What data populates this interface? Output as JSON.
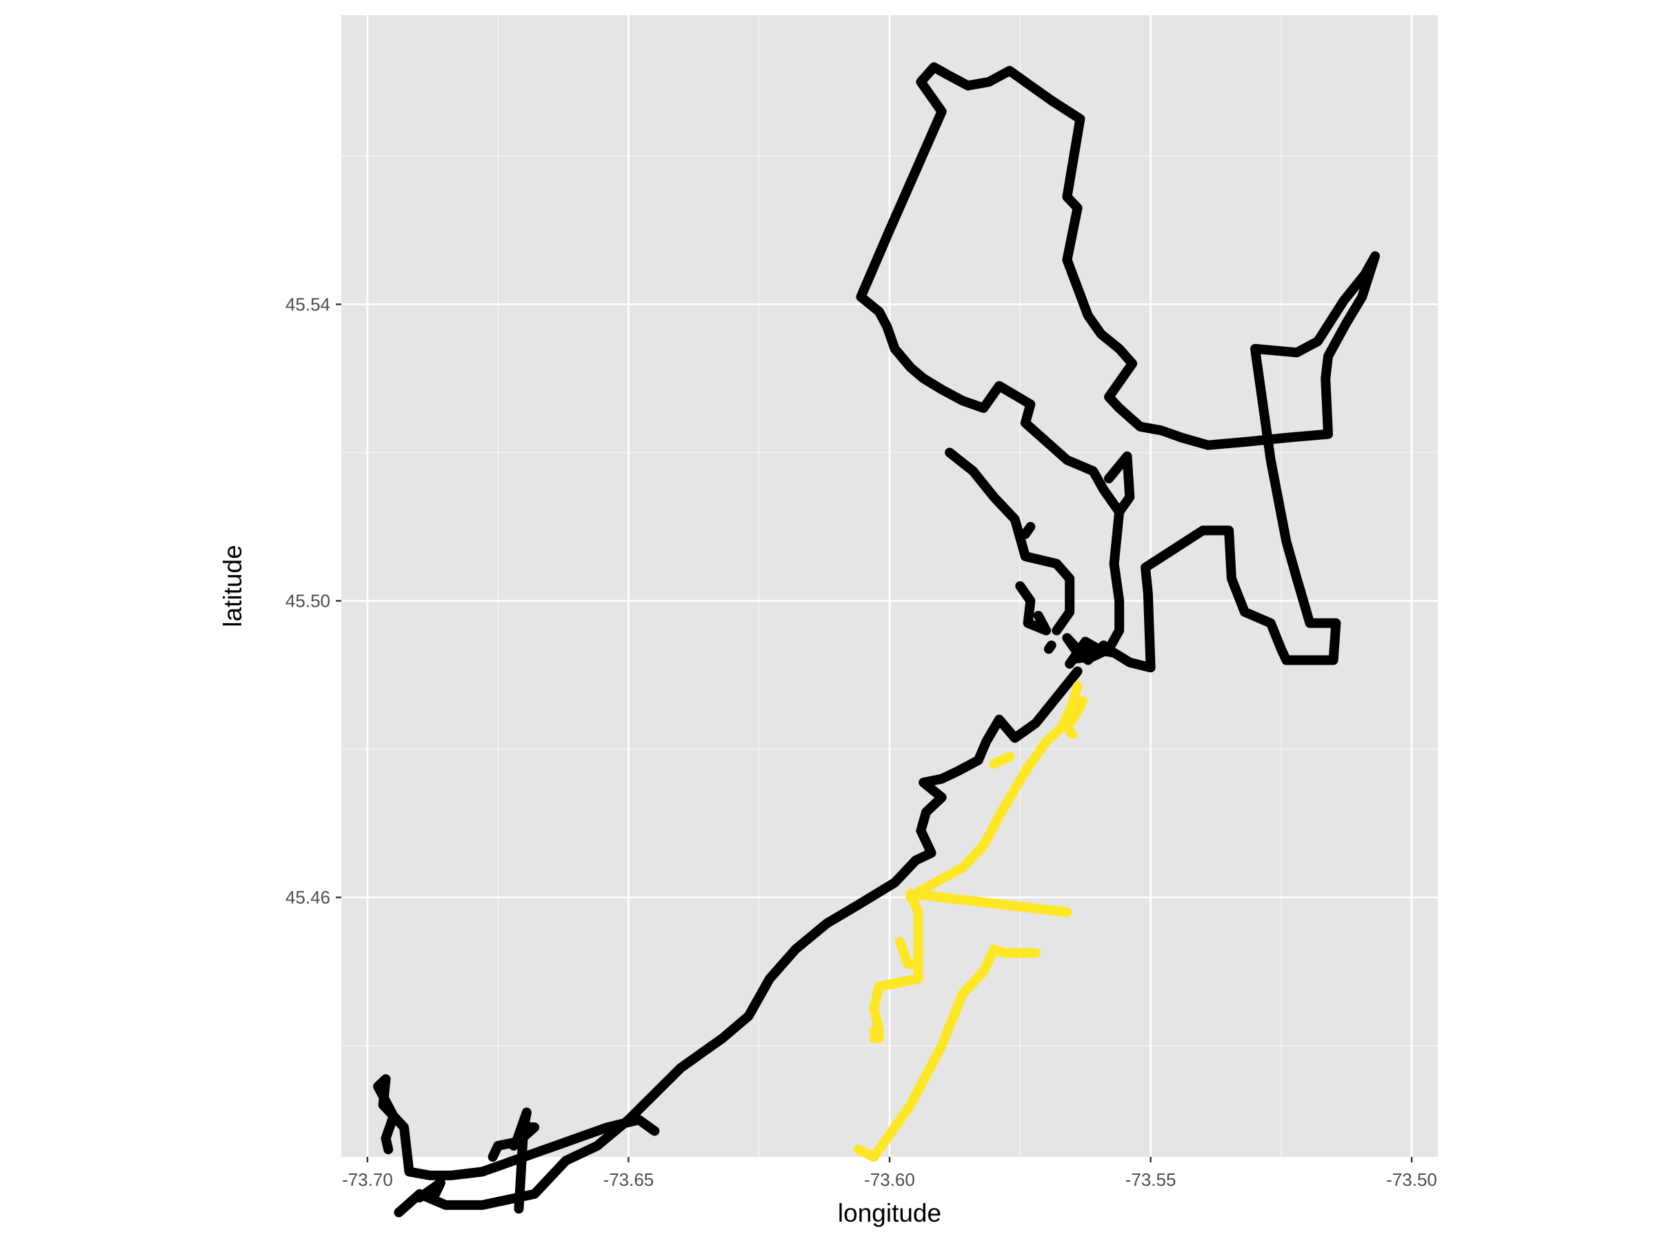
{
  "chart_data": {
    "type": "line",
    "title": "",
    "xlabel": "longitude",
    "ylabel": "latitude",
    "xlim": [
      -73.705,
      -73.495
    ],
    "ylim": [
      45.425,
      45.579
    ],
    "x_ticks": [
      -73.7,
      -73.65,
      -73.6,
      -73.55,
      -73.5
    ],
    "x_tick_labels": [
      "-73.70",
      "-73.65",
      "-73.60",
      "-73.55",
      "-73.50"
    ],
    "y_ticks": [
      45.46,
      45.5,
      45.54
    ],
    "y_tick_labels": [
      "45.46",
      "45.50",
      "45.54"
    ],
    "grid": true,
    "legend": "none",
    "colors": {
      "panel": "#e5e5e5",
      "grid": "#ffffff",
      "series_black": "#000000",
      "series_yellow": "#fde725"
    },
    "series": [
      {
        "color": "#000000",
        "segments": [
          [
            [
              -73.5645,
              45.4922
            ],
            [
              -73.561,
              45.4935
            ],
            [
              -73.557,
              45.493
            ],
            [
              -73.554,
              45.4917
            ],
            [
              -73.55,
              45.491
            ],
            [
              -73.5505,
              45.501
            ],
            [
              -73.551,
              45.5045
            ],
            [
              -73.54,
              45.5095
            ],
            [
              -73.535,
              45.5095
            ],
            [
              -73.5345,
              45.503
            ],
            [
              -73.532,
              45.4985
            ],
            [
              -73.527,
              45.497
            ],
            [
              -73.525,
              45.4935
            ],
            [
              -73.524,
              45.492
            ],
            [
              -73.521,
              45.492
            ],
            [
              -73.515,
              45.492
            ],
            [
              -73.5145,
              45.497
            ],
            [
              -73.5195,
              45.497
            ],
            [
              -73.522,
              45.503
            ],
            [
              -73.524,
              45.508
            ],
            [
              -73.527,
              45.519
            ],
            [
              -73.53,
              45.534
            ],
            [
              -73.522,
              45.5335
            ],
            [
              -73.518,
              45.535
            ],
            [
              -73.513,
              45.5405
            ],
            [
              -73.509,
              45.544
            ],
            [
              -73.507,
              45.5465
            ],
            [
              -73.5095,
              45.541
            ],
            [
              -73.5125,
              45.5375
            ],
            [
              -73.516,
              45.533
            ],
            [
              -73.5165,
              45.53
            ],
            [
              -73.516,
              45.5225
            ],
            [
              -73.524,
              45.522
            ],
            [
              -73.531,
              45.5215
            ],
            [
              -73.539,
              45.521
            ],
            [
              -73.544,
              45.522
            ],
            [
              -73.548,
              45.523
            ],
            [
              -73.552,
              45.5235
            ],
            [
              -73.556,
              45.526
            ],
            [
              -73.558,
              45.5275
            ],
            [
              -73.5535,
              45.532
            ],
            [
              -73.556,
              45.534
            ],
            [
              -73.5595,
              45.536
            ],
            [
              -73.562,
              45.5385
            ],
            [
              -73.566,
              45.546
            ],
            [
              -73.564,
              45.553
            ],
            [
              -73.566,
              45.5545
            ],
            [
              -73.5635,
              45.565
            ],
            [
              -73.569,
              45.5675
            ],
            [
              -73.571,
              45.5685
            ],
            [
              -73.573,
              45.5695
            ],
            [
              -73.577,
              45.5715
            ],
            [
              -73.581,
              45.57
            ],
            [
              -73.585,
              45.5695
            ],
            [
              -73.589,
              45.571
            ],
            [
              -73.5915,
              45.572
            ],
            [
              -73.594,
              45.57
            ],
            [
              -73.59,
              45.566
            ],
            [
              -73.595,
              45.558
            ],
            [
              -73.6,
              45.55
            ],
            [
              -73.6055,
              45.541
            ],
            [
              -73.602,
              45.539
            ],
            [
              -73.6005,
              45.537
            ],
            [
              -73.599,
              45.534
            ],
            [
              -73.596,
              45.5315
            ],
            [
              -73.5935,
              45.53
            ],
            [
              -73.59,
              45.5285
            ],
            [
              -73.586,
              45.527
            ],
            [
              -73.582,
              45.526
            ],
            [
              -73.579,
              45.529
            ],
            [
              -73.573,
              45.5265
            ],
            [
              -73.574,
              45.524
            ],
            [
              -73.57,
              45.5215
            ],
            [
              -73.566,
              45.519
            ],
            [
              -73.561,
              45.5175
            ],
            [
              -73.559,
              45.515
            ],
            [
              -73.556,
              45.512
            ],
            [
              -73.557,
              45.505
            ],
            [
              -73.556,
              45.5
            ],
            [
              -73.556,
              45.496
            ],
            [
              -73.558,
              45.4935
            ],
            [
              -73.561,
              45.4925
            ],
            [
              -73.5645,
              45.4922
            ]
          ],
          [
            [
              -73.5655,
              45.4915
            ],
            [
              -73.5625,
              45.4945
            ],
            [
              -73.56,
              45.4935
            ],
            [
              -73.564,
              45.493
            ],
            [
              -73.566,
              45.495
            ],
            [
              -73.562,
              45.492
            ],
            [
              -73.559,
              45.494
            ]
          ],
          [
            [
              -73.5885,
              45.52
            ],
            [
              -73.584,
              45.5175
            ],
            [
              -73.58,
              45.514
            ],
            [
              -73.576,
              45.511
            ],
            [
              -73.574,
              45.506
            ],
            [
              -73.568,
              45.505
            ],
            [
              -73.5655,
              45.503
            ],
            [
              -73.5655,
              45.4985
            ],
            [
              -73.568,
              45.496
            ]
          ],
          [
            [
              -73.558,
              45.5165
            ],
            [
              -73.5545,
              45.5195
            ],
            [
              -73.554,
              45.514
            ],
            [
              -73.556,
              45.512
            ]
          ],
          [
            [
              -73.575,
              45.502
            ],
            [
              -73.573,
              45.5
            ],
            [
              -73.5735,
              45.497
            ],
            [
              -73.57,
              45.496
            ],
            [
              -73.5715,
              45.498
            ]
          ],
          [
            [
              -73.574,
              45.509
            ],
            [
              -73.573,
              45.51
            ]
          ],
          [
            [
              -73.569,
              45.494
            ],
            [
              -73.5695,
              45.4935
            ]
          ],
          [
            [
              -73.564,
              45.4905
            ],
            [
              -73.568,
              45.487
            ],
            [
              -73.572,
              45.4835
            ],
            [
              -73.576,
              45.4815
            ],
            [
              -73.579,
              45.484
            ],
            [
              -73.5815,
              45.481
            ],
            [
              -73.583,
              45.4785
            ],
            [
              -73.587,
              45.477
            ],
            [
              -73.59,
              45.476
            ],
            [
              -73.5935,
              45.4755
            ],
            [
              -73.59,
              45.4735
            ],
            [
              -73.593,
              45.4715
            ],
            [
              -73.594,
              45.469
            ],
            [
              -73.592,
              45.466
            ],
            [
              -73.595,
              45.465
            ],
            [
              -73.599,
              45.462
            ],
            [
              -73.606,
              45.459
            ],
            [
              -73.612,
              45.4565
            ],
            [
              -73.618,
              45.453
            ],
            [
              -73.623,
              45.449
            ],
            [
              -73.627,
              45.444
            ],
            [
              -73.632,
              45.441
            ],
            [
              -73.64,
              45.437
            ],
            [
              -73.645,
              45.4335
            ],
            [
              -73.65,
              45.43
            ],
            [
              -73.656,
              45.4265
            ],
            [
              -73.662,
              45.4245
            ],
            [
              -73.668,
              45.42
            ],
            [
              -73.678,
              45.4185
            ],
            [
              -73.685,
              45.4185
            ],
            [
              -73.69,
              45.42
            ],
            [
              -73.694,
              45.4175
            ]
          ],
          [
            [
              -73.696,
              45.426
            ],
            [
              -73.6965,
              45.4275
            ],
            [
              -73.695,
              45.4305
            ],
            [
              -73.698,
              45.4345
            ],
            [
              -73.6965,
              45.4355
            ],
            [
              -73.697,
              45.432
            ],
            [
              -73.693,
              45.429
            ],
            [
              -73.692,
              45.423
            ],
            [
              -73.688,
              45.4225
            ],
            [
              -73.684,
              45.4225
            ],
            [
              -73.678,
              45.423
            ],
            [
              -73.67,
              45.425
            ],
            [
              -73.662,
              45.427
            ],
            [
              -73.654,
              45.429
            ],
            [
              -73.648,
              45.43
            ],
            [
              -73.645,
              45.4285
            ]
          ],
          [
            [
              -73.67,
              45.43
            ],
            [
              -73.671,
              45.418
            ]
          ],
          [
            [
              -73.676,
              45.425
            ],
            [
              -73.675,
              45.4265
            ],
            [
              -73.6715,
              45.427
            ],
            [
              -73.6695,
              45.431
            ],
            [
              -73.67,
              45.429
            ],
            [
              -73.668,
              45.429
            ],
            [
              -73.672,
              45.4265
            ]
          ],
          [
            [
              -73.687,
              45.42
            ],
            [
              -73.686,
              45.4215
            ],
            [
              -73.69,
              45.4195
            ]
          ]
        ]
      },
      {
        "color": "#fde725",
        "segments": [
          [
            [
              -73.564,
              45.4885
            ],
            [
              -73.565,
              45.486
            ],
            [
              -73.567,
              45.483
            ],
            [
              -73.57,
              45.481
            ],
            [
              -73.574,
              45.477
            ],
            [
              -73.579,
              45.471
            ],
            [
              -73.582,
              45.467
            ],
            [
              -73.586,
              45.464
            ],
            [
              -73.59,
              45.4625
            ],
            [
              -73.595,
              45.4605
            ],
            [
              -73.596,
              45.46
            ]
          ],
          [
            [
              -73.563,
              45.4865
            ],
            [
              -73.564,
              45.485
            ],
            [
              -73.566,
              45.483
            ],
            [
              -73.565,
              45.482
            ]
          ],
          [
            [
              -73.577,
              45.479
            ],
            [
              -73.58,
              45.478
            ]
          ],
          [
            [
              -73.596,
              45.4605
            ],
            [
              -73.566,
              45.458
            ]
          ],
          [
            [
              -73.596,
              45.4605
            ],
            [
              -73.5945,
              45.458
            ],
            [
              -73.5945,
              45.452
            ],
            [
              -73.5945,
              45.449
            ],
            [
              -73.602,
              45.448
            ],
            [
              -73.603,
              45.445
            ],
            [
              -73.602,
              45.442
            ],
            [
              -73.603,
              45.441
            ]
          ],
          [
            [
              -73.5945,
              45.451
            ],
            [
              -73.5965,
              45.451
            ],
            [
              -73.5975,
              45.453
            ],
            [
              -73.598,
              45.454
            ]
          ],
          [
            [
              -73.602,
              45.441
            ],
            [
              -73.603,
              45.442
            ]
          ],
          [
            [
              -73.572,
              45.4525
            ],
            [
              -73.578,
              45.4525
            ],
            [
              -73.58,
              45.453
            ],
            [
              -73.582,
              45.45
            ],
            [
              -73.586,
              45.447
            ],
            [
              -73.59,
              45.44
            ],
            [
              -73.596,
              45.432
            ],
            [
              -73.6,
              45.428
            ],
            [
              -73.603,
              45.425
            ],
            [
              -73.606,
              45.426
            ]
          ]
        ]
      }
    ]
  }
}
